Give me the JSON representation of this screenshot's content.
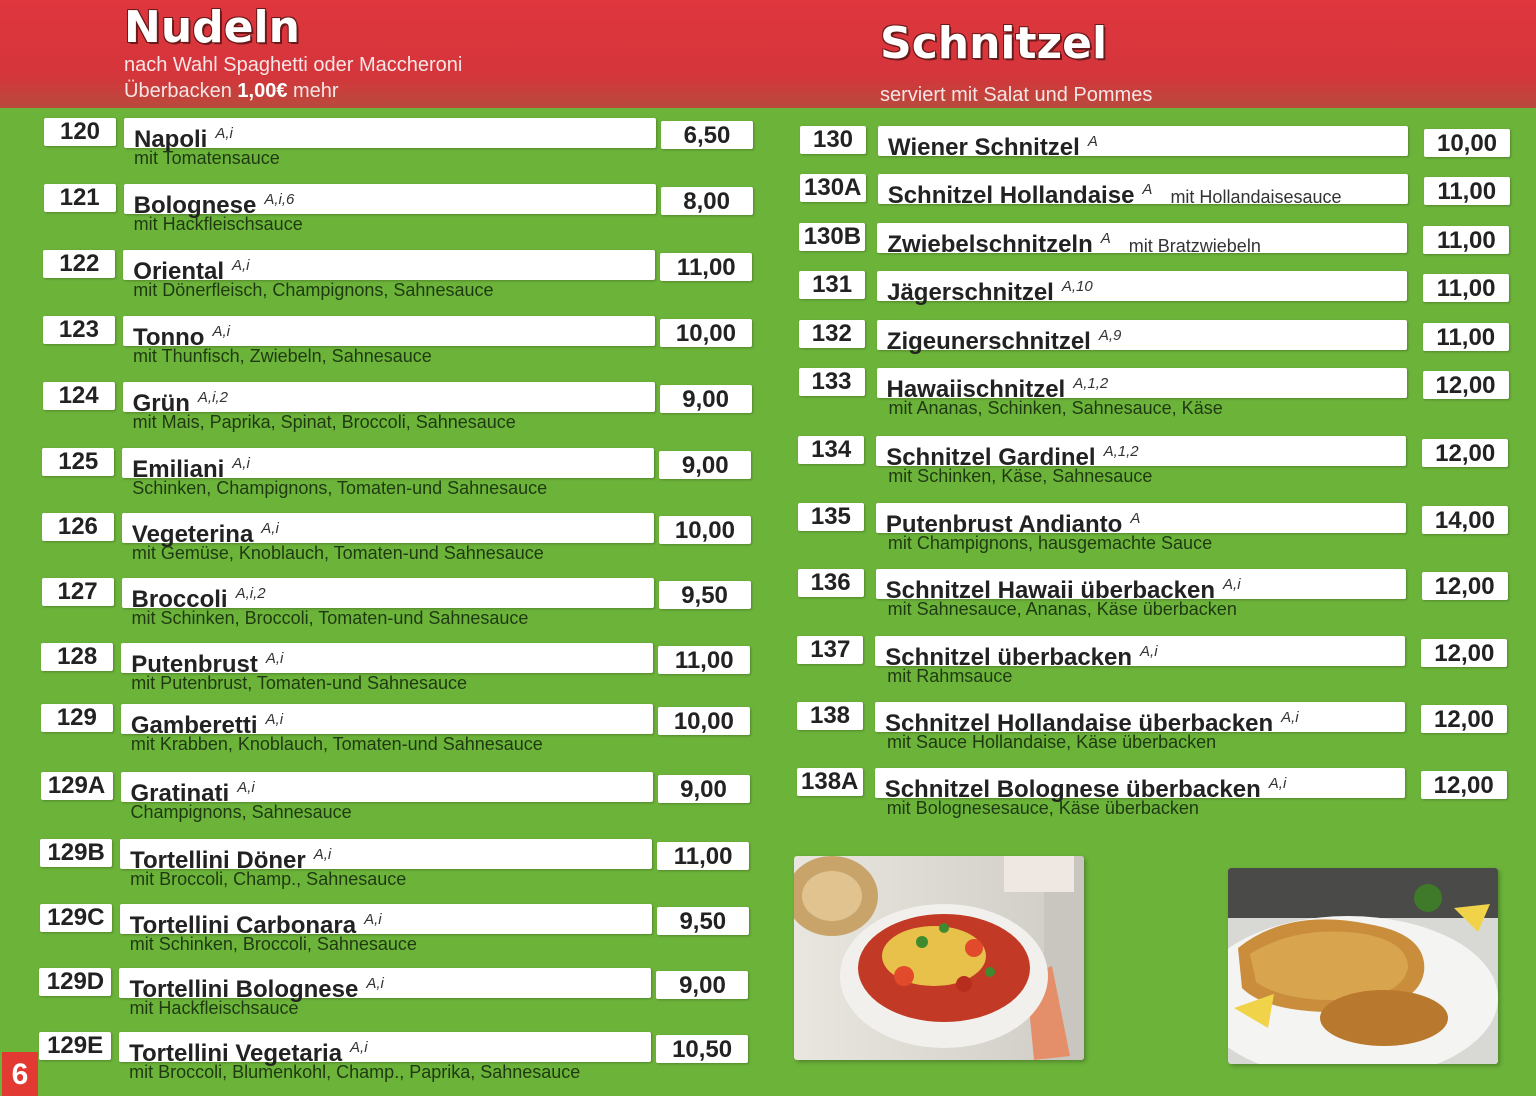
{
  "nudeln": {
    "title": "Nudeln",
    "subtitle1": "nach Wahl Spaghetti oder Maccheroni",
    "subtitle2_prefix": "Überbacken ",
    "subtitle2_price": "1,00€",
    "subtitle2_suffix": " mehr",
    "items": [
      {
        "num": "120",
        "name": "Napoli",
        "allergen": "A,i",
        "desc": "mit Tomatensauce",
        "price": "6,50"
      },
      {
        "num": "121",
        "name": "Bolognese",
        "allergen": "A,i,6",
        "desc": "mit Hackfleischsauce",
        "price": "8,00"
      },
      {
        "num": "122",
        "name": "Oriental",
        "allergen": "A,i",
        "desc": "mit Dönerfleisch, Champignons, Sahnesauce",
        "price": "11,00"
      },
      {
        "num": "123",
        "name": "Tonno",
        "allergen": "A,i",
        "desc": "mit Thunfisch, Zwiebeln, Sahnesauce",
        "price": "10,00"
      },
      {
        "num": "124",
        "name": "Grün",
        "allergen": "A,i,2",
        "desc": "mit Mais, Paprika, Spinat, Broccoli, Sahnesauce",
        "price": "9,00"
      },
      {
        "num": "125",
        "name": "Emiliani",
        "allergen": "A,i",
        "desc": "Schinken, Champignons, Tomaten-und Sahnesauce",
        "price": "9,00"
      },
      {
        "num": "126",
        "name": "Vegeterina",
        "allergen": "A,i",
        "desc": "mit Gemüse, Knoblauch, Tomaten-und Sahnesauce",
        "price": "10,00"
      },
      {
        "num": "127",
        "name": "Broccoli",
        "allergen": "A,i,2",
        "desc": "mit Schinken, Broccoli, Tomaten-und Sahnesauce",
        "price": "9,50"
      },
      {
        "num": "128",
        "name": "Putenbrust",
        "allergen": "A,i",
        "desc": "mit Putenbrust, Tomaten-und Sahnesauce",
        "price": "11,00"
      },
      {
        "num": "129",
        "name": "Gamberetti",
        "allergen": "A,i",
        "desc": "mit Krabben, Knoblauch, Tomaten-und Sahnesauce",
        "price": "10,00"
      },
      {
        "num": "129A",
        "name": "Gratinati",
        "allergen": "A,i",
        "desc": "Champignons, Sahnesauce",
        "price": "9,00"
      },
      {
        "num": "129B",
        "name": "Tortellini Döner",
        "allergen": "A,i",
        "desc": "mit Broccoli, Champ., Sahnesauce",
        "price": "11,00"
      },
      {
        "num": "129C",
        "name": "Tortellini Carbonara",
        "allergen": "A,i",
        "desc": "mit Schinken, Broccoli, Sahnesauce",
        "price": "9,50"
      },
      {
        "num": "129D",
        "name": "Tortellini  Bolognese",
        "allergen": "A,i",
        "desc": "mit Hackfleischsauce",
        "price": "9,00"
      },
      {
        "num": "129E",
        "name": "Tortellini Vegetaria",
        "allergen": "A,i",
        "desc": "mit Broccoli, Blumenkohl, Champ., Paprika, Sahnesauce",
        "price": "10,50"
      }
    ]
  },
  "schnitzel": {
    "title": "Schnitzel",
    "subtitle": "serviert mit Salat und Pommes",
    "items": [
      {
        "num": "130",
        "name": "Wiener Schnitzel",
        "allergen": "A",
        "inline": "",
        "desc": "",
        "price": "10,00"
      },
      {
        "num": "130A",
        "name": "Schnitzel Hollandaise",
        "allergen": "A",
        "inline": "mit Hollandaisesauce",
        "desc": "",
        "price": "11,00"
      },
      {
        "num": "130B",
        "name": "Zwiebelschnitzeln",
        "allergen": "A",
        "inline": "mit Bratzwiebeln",
        "desc": "",
        "price": "11,00"
      },
      {
        "num": "131",
        "name": "Jägerschnitzel",
        "allergen": "A,10",
        "inline": "",
        "desc": "",
        "price": "11,00"
      },
      {
        "num": "132",
        "name": "Zigeunerschnitzel",
        "allergen": "A,9",
        "inline": "",
        "desc": "",
        "price": "11,00"
      },
      {
        "num": "133",
        "name": "Hawaiischnitzel",
        "allergen": "A,1,2",
        "inline": "",
        "desc": "mit Ananas, Schinken, Sahnesauce, Käse",
        "price": "12,00"
      },
      {
        "num": "134",
        "name": "Schnitzel Gardinel",
        "allergen": "A,1,2",
        "inline": "",
        "desc": "mit Schinken, Käse, Sahnesauce",
        "price": "12,00"
      },
      {
        "num": "135",
        "name": "Putenbrust Andianto",
        "allergen": "A",
        "inline": "",
        "desc": "mit Champignons, hausgemachte Sauce",
        "price": "14,00"
      },
      {
        "num": "136",
        "name": "Schnitzel Hawaii überbacken",
        "allergen": "A,i",
        "inline": "",
        "desc": "mit Sahnesauce, Ananas, Käse überbacken",
        "price": "12,00"
      },
      {
        "num": "137",
        "name": "Schnitzel überbacken",
        "allergen": "A,i",
        "inline": "",
        "desc": "mit Rahmsauce",
        "price": "12,00"
      },
      {
        "num": "138",
        "name": "Schnitzel Hollandaise überbacken",
        "allergen": "A,i",
        "inline": "",
        "desc": "mit Sauce Hollandaise, Käse überbacken",
        "price": "12,00"
      },
      {
        "num": "138A",
        "name": "Schnitzel Bolognese überbacken",
        "allergen": "A,i",
        "inline": "",
        "desc": "mit Bolognesesauce, Käse überbacken",
        "price": "12,00"
      }
    ]
  },
  "page_number": "6",
  "colors": {
    "header_red": "#d4353b",
    "background_green": "#6cb33a",
    "page_number_red": "#e23a32"
  },
  "photos": [
    {
      "subject": "pasta-bowl-photo"
    },
    {
      "subject": "schnitzel-plate-photo"
    }
  ]
}
